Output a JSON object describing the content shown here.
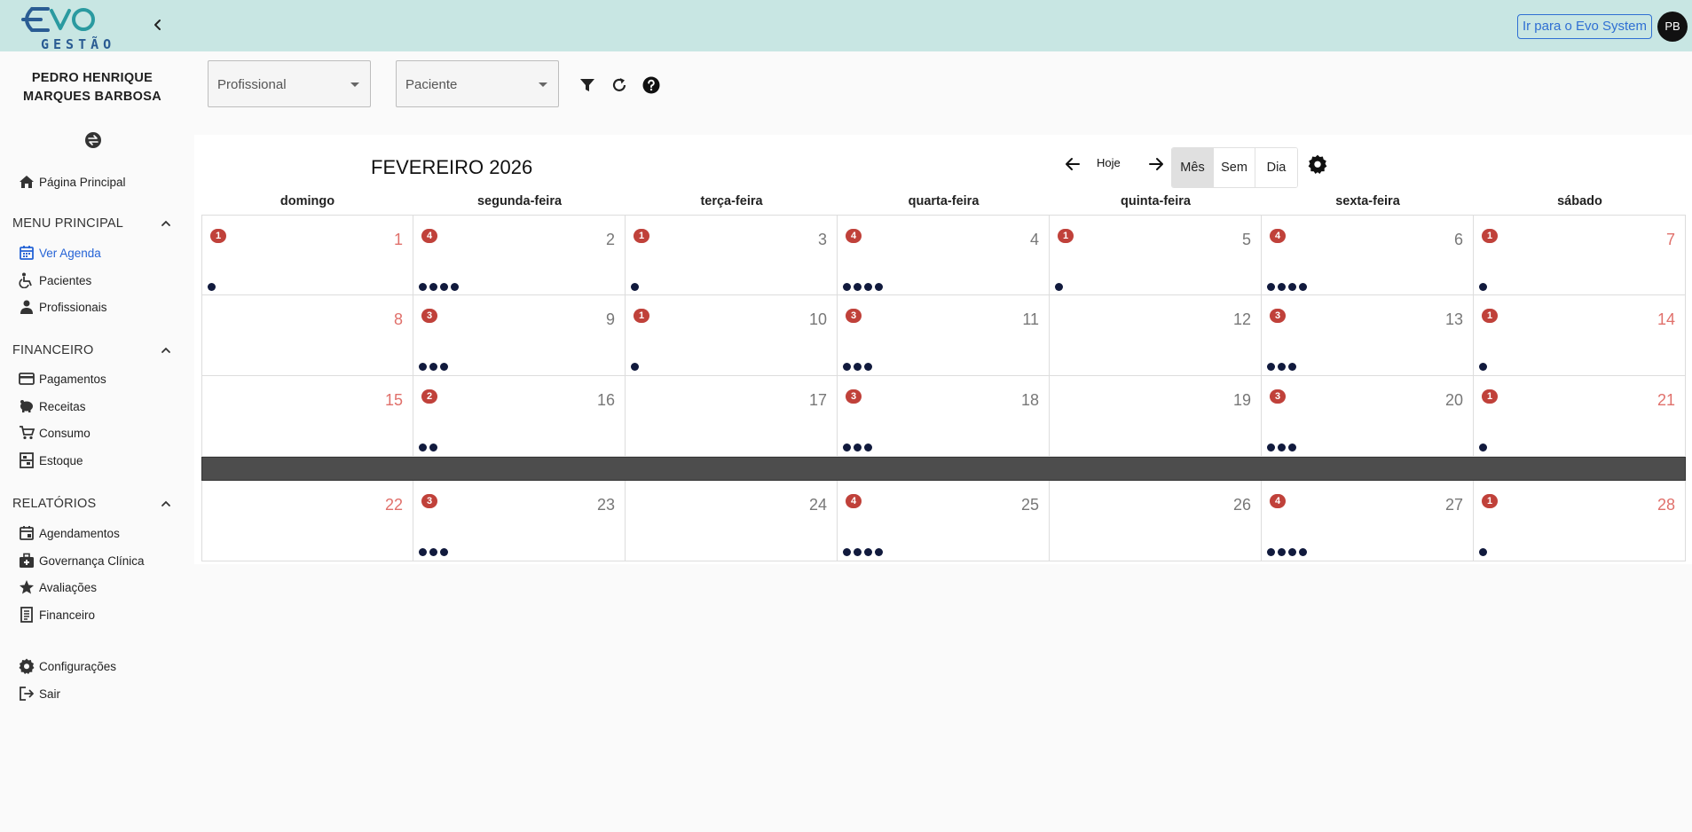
{
  "header": {
    "logo_text": "Evo",
    "logo_subtitle": "GESTÃO",
    "external_link": "Ir para o Evo System",
    "avatar_initials": "PB",
    "bar_color": "#c8e6e3"
  },
  "sidebar": {
    "user_name_line1": "PEDRO HENRIQUE",
    "user_name_line2": "MARQUES BARBOSA",
    "home": "Página Principal",
    "sections": [
      {
        "title": "MENU PRINCIPAL",
        "items": [
          "Ver Agenda",
          "Pacientes",
          "Profissionais"
        ]
      },
      {
        "title": "FINANCEIRO",
        "items": [
          "Pagamentos",
          "Receitas",
          "Consumo",
          "Estoque"
        ]
      },
      {
        "title": "RELATÓRIOS",
        "items": [
          "Agendamentos",
          "Governança Clínica",
          "Avaliações",
          "Financeiro"
        ]
      }
    ],
    "settings": "Configurações",
    "logout": "Sair",
    "active_item": "Ver Agenda",
    "active_color": "#2563d6"
  },
  "filters": {
    "professional_placeholder": "Profissional",
    "patient_placeholder": "Paciente"
  },
  "calendar": {
    "title": "FEVEREIRO 2026",
    "today_label": "Hoje",
    "views": [
      "Mês",
      "Sem",
      "Dia"
    ],
    "selected_view": "Mês",
    "weekdays": [
      "domingo",
      "segunda-feira",
      "terça-feira",
      "quarta-feira",
      "quinta-feira",
      "sexta-feira",
      "sábado"
    ],
    "badge_color": "#c0413a",
    "weekend_number_color": "#e0706b",
    "weeks": [
      {
        "days": [
          {
            "day": "1",
            "badge": "1",
            "dots": 1
          },
          {
            "day": "2",
            "badge": "4",
            "dots": 4
          },
          {
            "day": "3",
            "badge": "1",
            "dots": 1
          },
          {
            "day": "4",
            "badge": "4",
            "dots": 4
          },
          {
            "day": "5",
            "badge": "1",
            "dots": 1
          },
          {
            "day": "6",
            "badge": "4",
            "dots": 4
          },
          {
            "day": "7",
            "badge": "1",
            "dots": 1
          }
        ]
      },
      {
        "days": [
          {
            "day": "8",
            "badge": "",
            "dots": 0
          },
          {
            "day": "9",
            "badge": "3",
            "dots": 3
          },
          {
            "day": "10",
            "badge": "1",
            "dots": 1
          },
          {
            "day": "11",
            "badge": "3",
            "dots": 3
          },
          {
            "day": "12",
            "badge": "",
            "dots": 0
          },
          {
            "day": "13",
            "badge": "3",
            "dots": 3
          },
          {
            "day": "14",
            "badge": "1",
            "dots": 1
          }
        ]
      },
      {
        "days": [
          {
            "day": "15",
            "badge": "",
            "dots": 0
          },
          {
            "day": "16",
            "badge": "2",
            "dots": 2
          },
          {
            "day": "17",
            "badge": "",
            "dots": 0
          },
          {
            "day": "18",
            "badge": "3",
            "dots": 3
          },
          {
            "day": "19",
            "badge": "",
            "dots": 0
          },
          {
            "day": "20",
            "badge": "3",
            "dots": 3
          },
          {
            "day": "21",
            "badge": "1",
            "dots": 1
          }
        ],
        "highlight_bar_after": true
      },
      {
        "days": [
          {
            "day": "22",
            "badge": "",
            "dots": 0
          },
          {
            "day": "23",
            "badge": "3",
            "dots": 3
          },
          {
            "day": "24",
            "badge": "",
            "dots": 0
          },
          {
            "day": "25",
            "badge": "4",
            "dots": 4
          },
          {
            "day": "26",
            "badge": "",
            "dots": 0
          },
          {
            "day": "27",
            "badge": "4",
            "dots": 4
          },
          {
            "day": "28",
            "badge": "1",
            "dots": 1
          }
        ]
      }
    ]
  }
}
